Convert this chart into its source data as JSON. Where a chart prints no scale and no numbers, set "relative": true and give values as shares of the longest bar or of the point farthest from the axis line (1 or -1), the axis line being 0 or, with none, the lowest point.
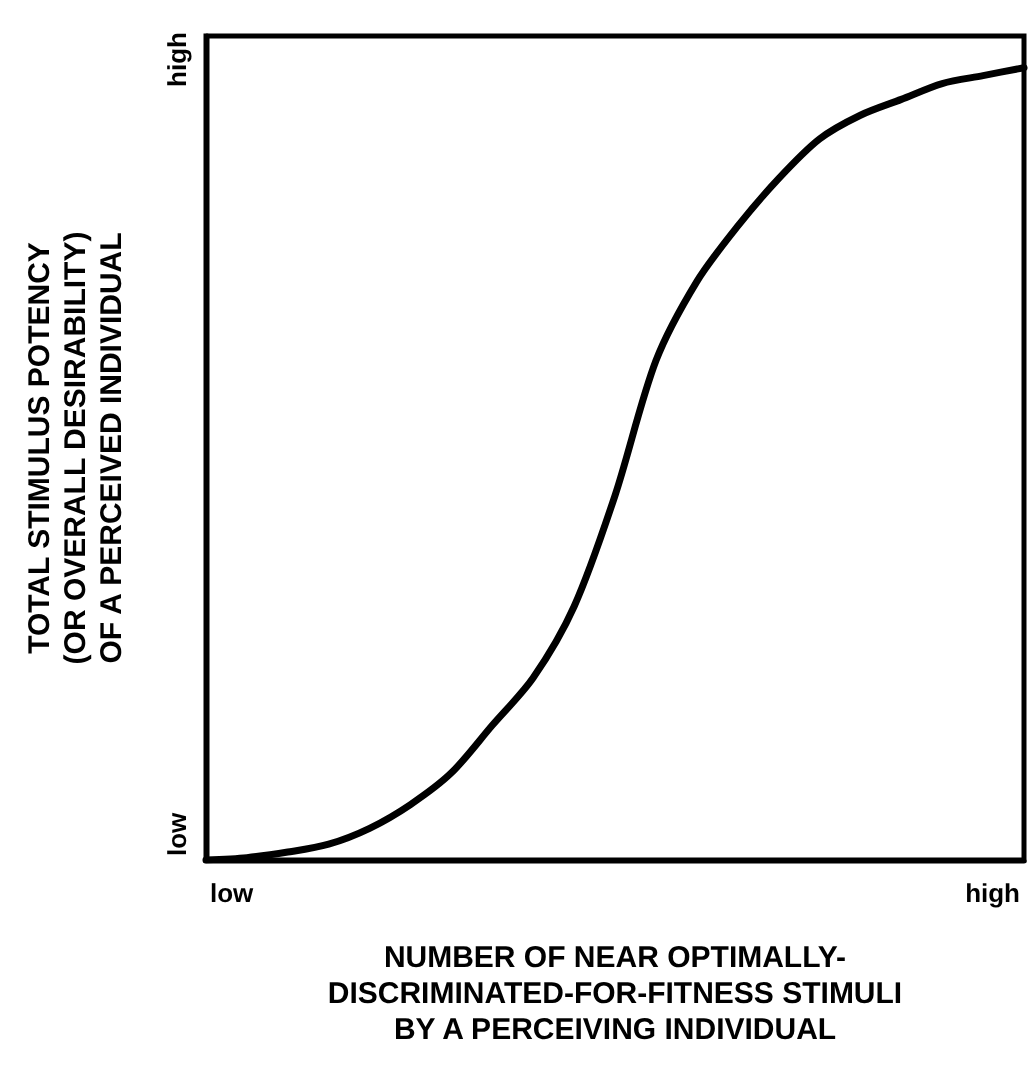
{
  "chart_data": {
    "type": "line",
    "relative": true,
    "xlabel": "NUMBER OF NEAR OPTIMALLY-\nDISCRIMINATED-FOR-FITNESS STIMULI\nBY A PERCEIVING INDIVIDUAL",
    "ylabel": "TOTAL STIMULUS POTENCY\n(OR OVERALL DESIRABILITY)\nOF A PERCEIVED INDIVIDUAL",
    "categories": [
      null,
      null,
      null,
      null,
      null,
      null,
      null,
      null,
      null,
      null,
      null,
      null,
      null,
      null,
      null,
      null,
      null,
      null,
      null,
      null,
      null
    ],
    "series": [
      {
        "color": "#000000",
        "values": [
          0,
          0.003,
          0.01,
          0.02,
          0.04,
          0.07,
          0.11,
          0.17,
          0.23,
          0.32,
          0.46,
          0.63,
          0.73,
          0.8,
          0.86,
          0.91,
          0.94,
          0.96,
          0.98,
          0.99,
          1
        ]
      }
    ],
    "annotations": [
      "low",
      "high",
      "low",
      "high"
    ],
    "marker": "none",
    "line_style": "solid"
  }
}
